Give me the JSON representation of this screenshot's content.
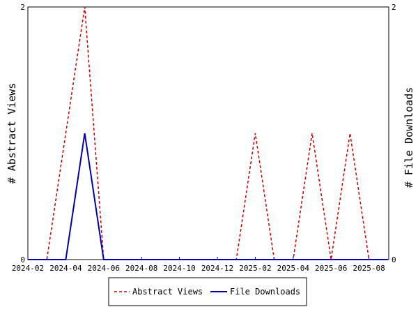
{
  "chart_data": {
    "type": "line",
    "ylabel_left": "# Abstract Views",
    "ylabel_right": "# File Downloads",
    "x_ticks": [
      "2024-02",
      "2024-04",
      "2024-06",
      "2024-08",
      "2024-10",
      "2024-12",
      "2025-02",
      "2025-04",
      "2025-06",
      "2025-08"
    ],
    "x": [
      "2024-02",
      "2024-03",
      "2024-04",
      "2024-05",
      "2024-06",
      "2024-07",
      "2024-08",
      "2024-09",
      "2024-10",
      "2024-11",
      "2024-12",
      "2025-01",
      "2025-02",
      "2025-03",
      "2025-04",
      "2025-05",
      "2025-06",
      "2025-07",
      "2025-08",
      "2025-09"
    ],
    "y_left_ticks": [
      "0",
      "2"
    ],
    "y_right_ticks": [
      "0",
      "2"
    ],
    "y_left_range": [
      0,
      2
    ],
    "y_right_range": [
      0,
      2
    ],
    "series": [
      {
        "name": "Abstract Views",
        "axis": "left",
        "color": "#cc0000",
        "style": "dashed",
        "values": [
          0,
          0,
          1,
          2,
          0,
          0,
          0,
          0,
          0,
          0,
          0,
          0,
          1,
          0,
          0,
          1,
          0,
          1,
          0,
          0
        ]
      },
      {
        "name": "File Downloads",
        "axis": "right",
        "color": "#0000aa",
        "style": "solid",
        "values": [
          0,
          0,
          0,
          1,
          0,
          0,
          0,
          0,
          0,
          0,
          0,
          0,
          0,
          0,
          0,
          0,
          0,
          0,
          0,
          0
        ]
      }
    ],
    "legend_position": "bottom"
  }
}
